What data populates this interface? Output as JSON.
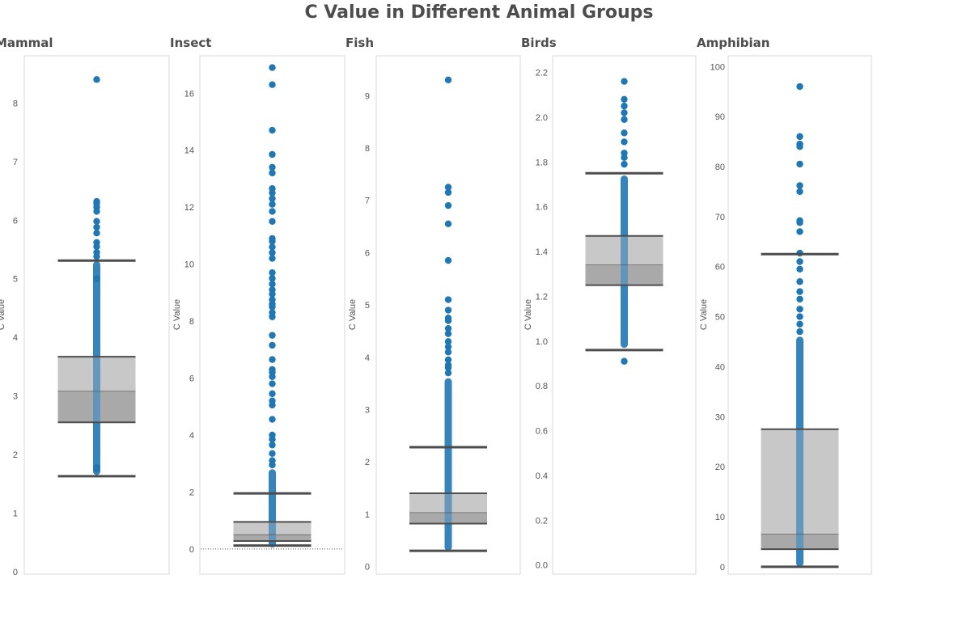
{
  "chart_data": {
    "type": "box",
    "title": "C Value in Different Animal Groups",
    "ylabel": "C Value",
    "colors": {
      "points": "#1f77b4",
      "box_upper": "#c8c8c8",
      "box_lower": "#999999",
      "whisker": "#4d4d4d",
      "frame": "#d9d9d9"
    },
    "panels": [
      {
        "name": "Mammal",
        "ylim": [
          0,
          8.75
        ],
        "ticks": [
          0,
          1,
          2,
          3,
          4,
          5,
          6,
          7,
          8
        ],
        "whisker_low": 1.63,
        "q1": 2.55,
        "median": 3.08,
        "q3": 3.67,
        "whisker_high": 5.31,
        "body_range": [
          1.65,
          5.3
        ],
        "points": [
          8.4,
          6.32,
          6.28,
          6.22,
          6.15,
          5.98,
          5.88,
          5.78,
          5.62,
          5.55,
          5.45,
          5.38,
          5.0,
          1.78,
          1.75
        ]
      },
      {
        "name": "Insect",
        "ylim": [
          -0.8,
          17.2
        ],
        "ticks": [
          0,
          2,
          4,
          6,
          8,
          10,
          12,
          14,
          16
        ],
        "whisker_low": 0.12,
        "q1": 0.28,
        "median": 0.5,
        "q3": 0.95,
        "whisker_high": 1.95,
        "body_range": [
          0.05,
          2.8
        ],
        "zero_line": true,
        "points": [
          16.9,
          16.3,
          14.7,
          13.85,
          13.4,
          13.2,
          12.65,
          12.5,
          12.3,
          12.1,
          11.85,
          11.5,
          10.9,
          10.8,
          10.6,
          10.4,
          10.2,
          9.7,
          9.5,
          9.3,
          9.1,
          8.95,
          8.75,
          8.6,
          8.5,
          8.3,
          8.15,
          7.5,
          7.15,
          6.65,
          6.3,
          6.2,
          6.05,
          5.8,
          5.45,
          5.2,
          5.05,
          4.55,
          4.0,
          3.85,
          3.65,
          3.35,
          3.1,
          2.95
        ]
      },
      {
        "name": "Fish",
        "ylim": [
          -0.1,
          9.7
        ],
        "ticks": [
          0,
          1,
          2,
          3,
          4,
          5,
          6,
          7,
          8,
          9
        ],
        "whisker_low": 0.3,
        "q1": 0.82,
        "median": 1.03,
        "q3": 1.4,
        "whisker_high": 2.28,
        "body_range": [
          0.3,
          3.6
        ],
        "points": [
          9.3,
          7.25,
          7.15,
          6.9,
          6.55,
          5.85,
          5.1,
          4.9,
          4.75,
          4.7,
          4.55,
          4.45,
          4.3,
          4.2,
          4.1,
          3.95,
          3.85,
          3.8,
          3.7
        ]
      },
      {
        "name": "Birds",
        "ylim": [
          -0.03,
          2.26
        ],
        "ticks": [
          0.0,
          0.2,
          0.4,
          0.6,
          0.8,
          1.0,
          1.2,
          1.4,
          1.6,
          1.8,
          2.0,
          2.2
        ],
        "tick_labels": [
          "0.0",
          "0.2",
          "0.4",
          "0.6",
          "0.8",
          "1.0",
          "1.2",
          "1.4",
          "1.6",
          "1.8",
          "2.0",
          "2.2"
        ],
        "whisker_low": 0.96,
        "q1": 1.25,
        "median": 1.34,
        "q3": 1.47,
        "whisker_high": 1.75,
        "body_range": [
          0.97,
          1.74
        ],
        "points": [
          2.16,
          2.08,
          2.05,
          2.02,
          1.99,
          1.93,
          1.89,
          1.84,
          1.82,
          1.79,
          0.91
        ]
      },
      {
        "name": "Amphibian",
        "ylim": [
          -1,
          101.5
        ],
        "ticks": [
          0,
          10,
          20,
          30,
          40,
          50,
          60,
          70,
          80,
          90,
          100
        ],
        "whisker_low": 0.0,
        "q1": 3.5,
        "median": 6.5,
        "q3": 27.5,
        "whisker_high": 62.5,
        "body_range": [
          0.0,
          46
        ],
        "points": [
          96,
          86,
          84.5,
          84,
          80.5,
          76.2,
          75,
          69.2,
          68.8,
          67,
          62.7,
          61,
          59.5,
          57,
          55,
          53.5,
          51.5,
          50,
          48.5,
          47
        ]
      }
    ]
  }
}
